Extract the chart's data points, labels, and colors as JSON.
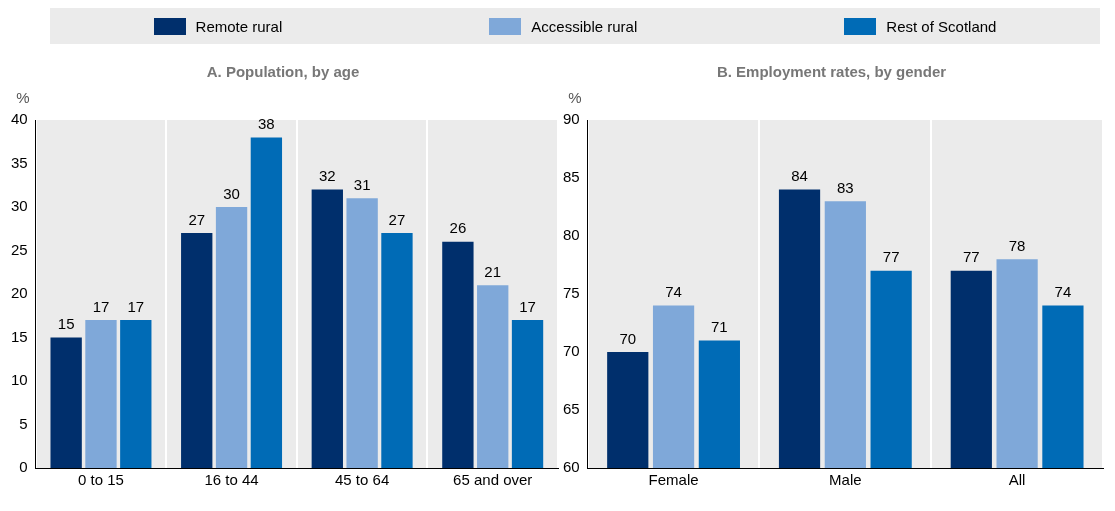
{
  "chart_data": [
    {
      "type": "bar",
      "title": "A. Population, by age",
      "ylabel": "%",
      "categories": [
        "0 to 15",
        "16 to 44",
        "45 to 64",
        "65 and over"
      ],
      "series": [
        {
          "name": "Remote rural",
          "color": "#002f6c",
          "values": [
            15,
            27,
            32,
            26
          ]
        },
        {
          "name": "Accessible rural",
          "color": "#7fa8d9",
          "values": [
            17,
            30,
            31,
            21
          ]
        },
        {
          "name": "Rest of Scotland",
          "color": "#006bb6",
          "values": [
            17,
            38,
            27,
            17
          ]
        }
      ],
      "ylim": [
        0,
        40
      ],
      "yticks": [
        0,
        5,
        10,
        15,
        20,
        25,
        30,
        35,
        40
      ],
      "grid": "x",
      "legend": "top",
      "data_labels": true
    },
    {
      "type": "bar",
      "title": "B. Employment rates, by gender",
      "ylabel": "%",
      "categories": [
        "Female",
        "Male",
        "All"
      ],
      "series": [
        {
          "color": "#002f6c",
          "values": [
            70,
            84,
            77
          ]
        },
        {
          "color": "#7fa8d9",
          "values": [
            74,
            83,
            78
          ]
        },
        {
          "color": "#006bb6",
          "values": [
            71,
            77,
            74
          ]
        }
      ],
      "ylim": [
        60,
        90
      ],
      "yticks": [
        60,
        65,
        70,
        75,
        80,
        85,
        90
      ],
      "grid": "x",
      "data_labels": true
    }
  ]
}
